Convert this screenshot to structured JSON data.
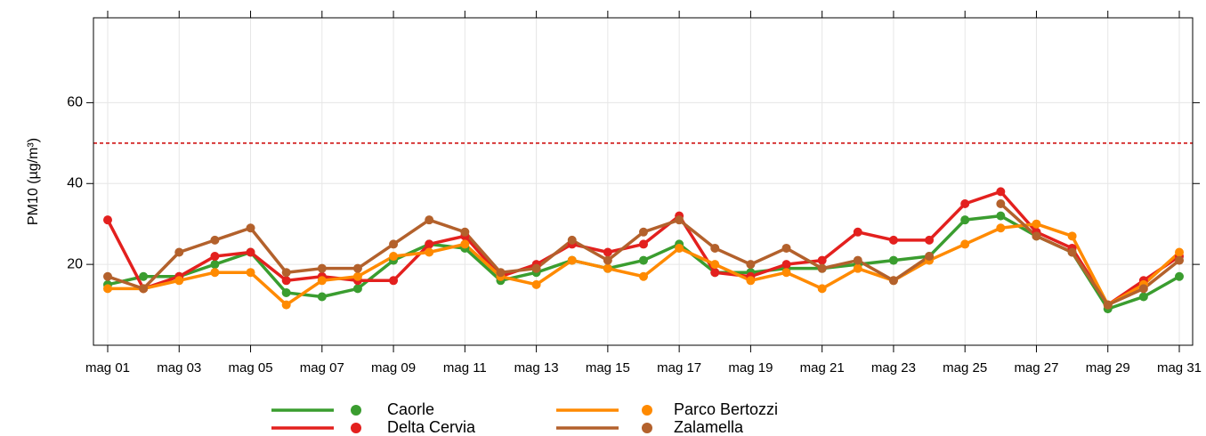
{
  "chart_data": {
    "type": "line",
    "ylabel": "PM10 (µg/m³)",
    "categories": [
      "mag 01",
      null,
      "mag 03",
      null,
      "mag 05",
      null,
      "mag 07",
      null,
      "mag 09",
      null,
      "mag 11",
      null,
      "mag 13",
      null,
      "mag 15",
      null,
      "mag 17",
      null,
      "mag 19",
      null,
      "mag 21",
      null,
      "mag 23",
      null,
      "mag 25",
      null,
      "mag 27",
      null,
      "mag 29",
      null,
      "mag 31"
    ],
    "series": [
      {
        "name": "Caorle",
        "color": "#3a9d2f",
        "values": [
          15,
          17,
          17,
          20,
          23,
          13,
          12,
          14,
          21,
          25,
          24,
          16,
          18,
          21,
          19,
          21,
          25,
          18,
          18,
          19,
          19,
          20,
          21,
          22,
          31,
          32,
          27,
          23,
          9,
          12,
          17
        ]
      },
      {
        "name": "Delta Cervia",
        "color": "#e3201e",
        "values": [
          31,
          14,
          17,
          22,
          23,
          16,
          17,
          16,
          16,
          25,
          27,
          17,
          20,
          25,
          23,
          25,
          32,
          18,
          17,
          20,
          21,
          28,
          26,
          26,
          35,
          38,
          28,
          24,
          10,
          16,
          22
        ]
      },
      {
        "name": "Parco Bertozzi",
        "color": "#ff8a00",
        "values": [
          14,
          14,
          16,
          18,
          18,
          10,
          16,
          17,
          22,
          23,
          25,
          17,
          15,
          21,
          19,
          17,
          24,
          20,
          16,
          18,
          14,
          19,
          16,
          21,
          25,
          29,
          30,
          27,
          10,
          15,
          23
        ]
      },
      {
        "name": "Zalamella",
        "color": "#b3612c",
        "values": [
          17,
          14,
          23,
          26,
          29,
          18,
          19,
          19,
          25,
          31,
          28,
          18,
          19,
          26,
          21,
          28,
          31,
          24,
          20,
          24,
          19,
          21,
          16,
          22,
          null,
          35,
          27,
          23,
          10,
          14,
          21
        ]
      }
    ],
    "limit": 50,
    "limit_color": "#cc0000",
    "ylim": [
      0,
      81
    ],
    "yticks": [
      20,
      40,
      60
    ],
    "grid": true
  }
}
